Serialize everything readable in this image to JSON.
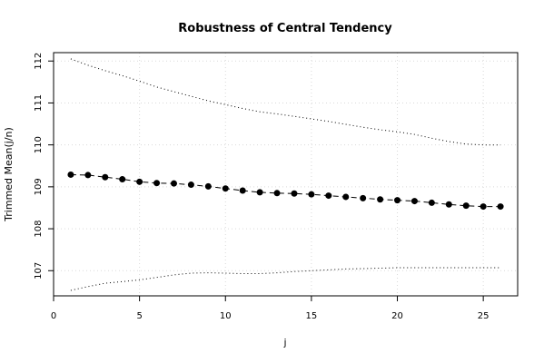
{
  "chart_data": {
    "type": "line",
    "title": "Robustness of Central Tendency",
    "xlabel": "j",
    "ylabel": "Trimmed Mean(j/n)",
    "xlim": [
      0,
      27
    ],
    "ylim": [
      106.4,
      112.2
    ],
    "x_ticks": [
      0,
      5,
      10,
      15,
      20,
      25
    ],
    "y_ticks": [
      107,
      108,
      109,
      110,
      111,
      112
    ],
    "grid": true,
    "legend": "none",
    "series": [
      {
        "style": "dashed line with filled circles",
        "color": "#000000",
        "x": [
          1,
          2,
          3,
          4,
          5,
          6,
          7,
          8,
          9,
          10,
          11,
          12,
          13,
          14,
          15,
          16,
          17,
          18,
          19,
          20,
          21,
          22,
          23,
          24,
          25,
          26
        ],
        "values": [
          109.29,
          109.28,
          109.23,
          109.18,
          109.12,
          109.09,
          109.08,
          109.05,
          109.01,
          108.96,
          108.91,
          108.87,
          108.85,
          108.84,
          108.82,
          108.79,
          108.76,
          108.73,
          108.7,
          108.68,
          108.66,
          108.62,
          108.58,
          108.55,
          108.53,
          108.53
        ]
      },
      {
        "style": "dotted upper band",
        "color": "#000000",
        "x": [
          1,
          2,
          3,
          4,
          5,
          6,
          7,
          8,
          9,
          10,
          11,
          12,
          13,
          14,
          15,
          16,
          17,
          18,
          19,
          20,
          21,
          22,
          23,
          24,
          25,
          26
        ],
        "values": [
          112.05,
          111.9,
          111.77,
          111.65,
          111.52,
          111.38,
          111.27,
          111.16,
          111.05,
          110.96,
          110.87,
          110.79,
          110.74,
          110.68,
          110.62,
          110.56,
          110.49,
          110.42,
          110.36,
          110.31,
          110.25,
          110.16,
          110.08,
          110.02,
          110.0,
          110.0
        ]
      },
      {
        "style": "dotted lower band",
        "color": "#000000",
        "x": [
          1,
          2,
          3,
          4,
          5,
          6,
          7,
          8,
          9,
          10,
          11,
          12,
          13,
          14,
          15,
          16,
          17,
          18,
          19,
          20,
          21,
          22,
          23,
          24,
          25,
          26
        ],
        "values": [
          106.53,
          106.62,
          106.7,
          106.74,
          106.78,
          106.84,
          106.9,
          106.94,
          106.95,
          106.94,
          106.93,
          106.93,
          106.95,
          106.98,
          107.0,
          107.02,
          107.04,
          107.05,
          107.06,
          107.07,
          107.07,
          107.07,
          107.07,
          107.07,
          107.07,
          107.07
        ]
      }
    ]
  }
}
